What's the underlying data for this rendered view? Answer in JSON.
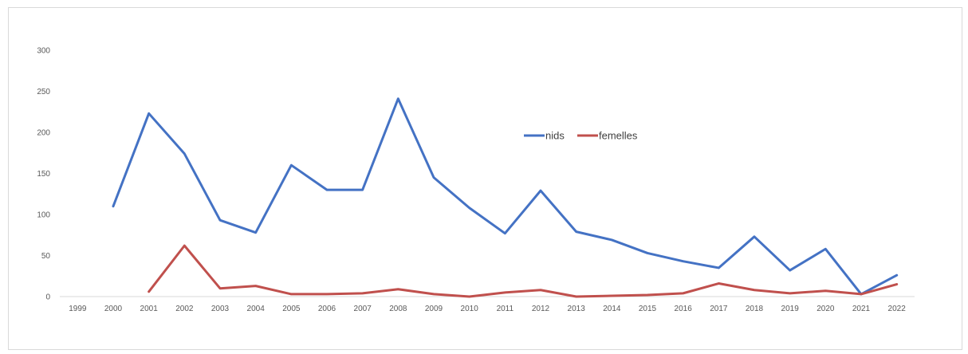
{
  "chart_data": {
    "type": "line",
    "title": "",
    "xlabel": "",
    "ylabel": "",
    "categories": [
      "1999",
      "2000",
      "2001",
      "2002",
      "2003",
      "2004",
      "2005",
      "2006",
      "2007",
      "2008",
      "2009",
      "2010",
      "2011",
      "2012",
      "2013",
      "2014",
      "2015",
      "2016",
      "2017",
      "2018",
      "2019",
      "2020",
      "2021",
      "2022"
    ],
    "ylim": [
      0,
      300
    ],
    "yticks": [
      0,
      50,
      100,
      150,
      200,
      250,
      300
    ],
    "grid": false,
    "legend_position": "center-right",
    "series": [
      {
        "name": "nids",
        "color": "#4472c4",
        "values": [
          null,
          110,
          223,
          174,
          93,
          78,
          160,
          130,
          130,
          241,
          145,
          108,
          77,
          129,
          79,
          69,
          53,
          43,
          35,
          73,
          32,
          58,
          3,
          26
        ]
      },
      {
        "name": "femelles",
        "color": "#c0504d",
        "values": [
          null,
          null,
          6,
          62,
          10,
          13,
          3,
          3,
          4,
          9,
          3,
          0,
          5,
          8,
          0,
          1,
          2,
          4,
          16,
          8,
          4,
          7,
          3,
          15
        ]
      }
    ]
  }
}
